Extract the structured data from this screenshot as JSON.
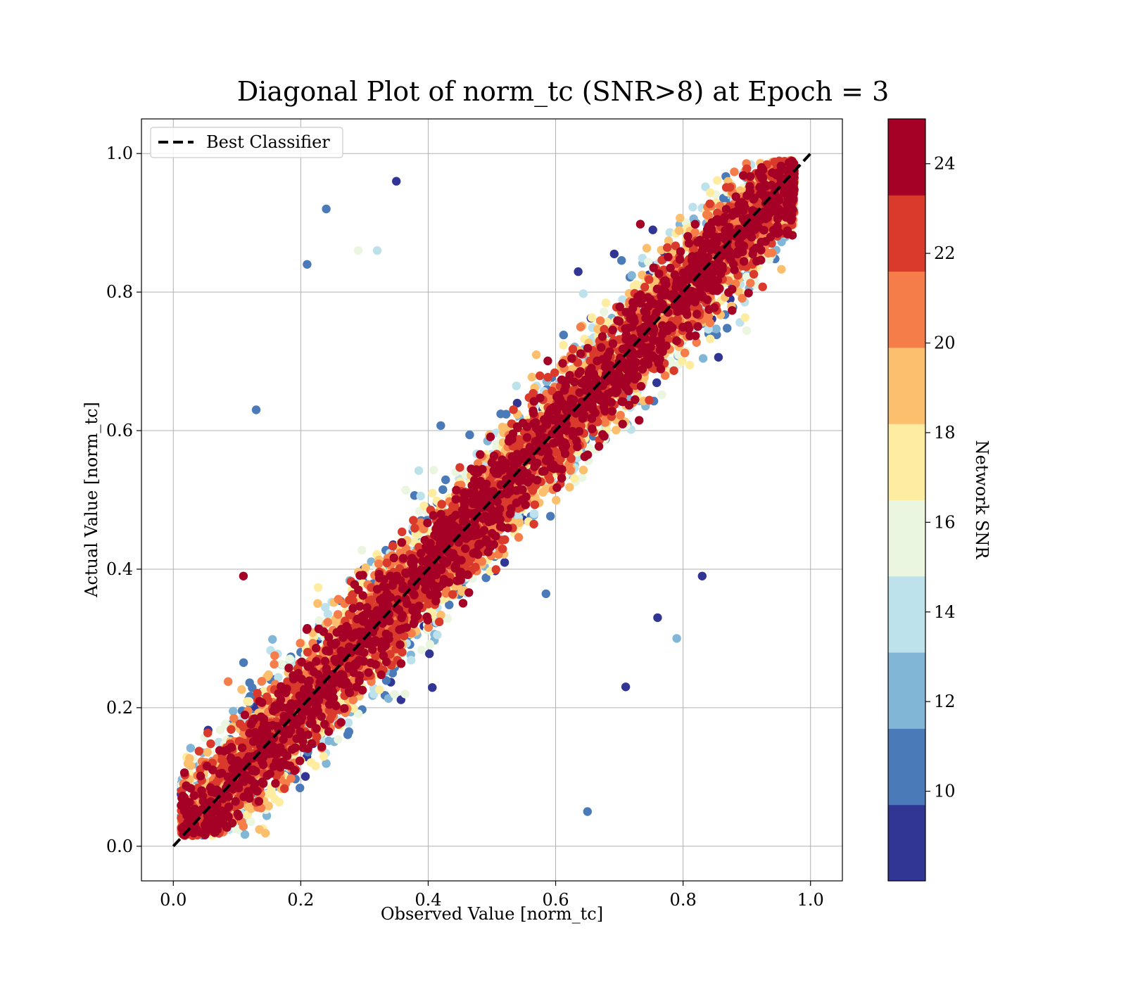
{
  "chart_data": {
    "type": "scatter",
    "title": "Diagonal Plot of norm_tc (SNR>8) at Epoch = 3",
    "xlabel": "Observed Value [norm_tc]",
    "ylabel": "Actual Value [norm_tc]",
    "xlim": [
      -0.05,
      1.05
    ],
    "ylim": [
      -0.05,
      1.05
    ],
    "xticks": [
      "0.0",
      "0.2",
      "0.4",
      "0.6",
      "0.8",
      "1.0"
    ],
    "yticks": [
      "0.0",
      "0.2",
      "0.4",
      "0.6",
      "0.8",
      "1.0"
    ],
    "grid": true,
    "legend": {
      "label": "Best Classifier",
      "placement": "upper-left"
    },
    "reference_line": {
      "name": "Best Classifier",
      "x": [
        0,
        1
      ],
      "y": [
        0,
        1
      ],
      "style": "dashed",
      "color": "#000000"
    },
    "colorbar": {
      "label": "Network SNR",
      "range": [
        8,
        25
      ],
      "ticks": [
        "10",
        "12",
        "14",
        "16",
        "18",
        "20",
        "22",
        "24"
      ],
      "bins": [
        {
          "from": 8,
          "to": 9.7,
          "color": "#313695"
        },
        {
          "from": 9.7,
          "to": 11.4,
          "color": "#4a7ab8"
        },
        {
          "from": 11.4,
          "to": 13.1,
          "color": "#81b6d6"
        },
        {
          "from": 13.1,
          "to": 14.8,
          "color": "#bde2ec"
        },
        {
          "from": 14.8,
          "to": 16.5,
          "color": "#ebf6e0"
        },
        {
          "from": 16.5,
          "to": 18.2,
          "color": "#feeda0"
        },
        {
          "from": 18.2,
          "to": 19.9,
          "color": "#fcbf6e"
        },
        {
          "from": 19.9,
          "to": 21.6,
          "color": "#f57d4a"
        },
        {
          "from": 21.6,
          "to": 23.3,
          "color": "#d93a2c"
        },
        {
          "from": 23.3,
          "to": 25,
          "color": "#a50026"
        }
      ]
    },
    "series": [
      {
        "name": "Network SNR",
        "points_sample": [
          [
            0.24,
            0.92,
            10
          ],
          [
            0.21,
            0.84,
            11
          ],
          [
            0.13,
            0.63,
            11
          ],
          [
            0.35,
            0.96,
            9
          ],
          [
            0.76,
            0.33,
            9
          ],
          [
            0.79,
            0.3,
            12
          ],
          [
            0.83,
            0.39,
            9
          ],
          [
            0.71,
            0.23,
            9
          ],
          [
            0.11,
            0.39,
            24
          ],
          [
            0.65,
            0.05,
            11
          ],
          [
            0.32,
            0.86,
            14
          ],
          [
            0.29,
            0.86,
            16
          ]
        ]
      }
    ]
  }
}
